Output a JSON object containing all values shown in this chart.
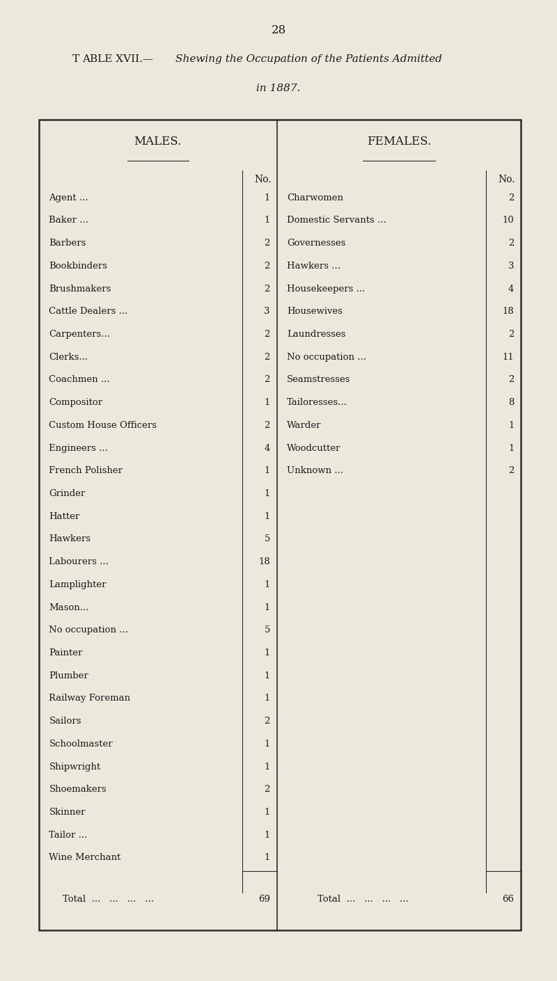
{
  "page_number": "28",
  "title_prefix": "Table XVII.—",
  "title_italic": "Shewing the Occupation of the Patients Admitted",
  "title_line2": "in 1887.",
  "males_header": "MALES.",
  "females_header": "FEMALES.",
  "no_label": "No.",
  "males_rows": [
    [
      "Agent ...",
      1
    ],
    [
      "Baker ...",
      1
    ],
    [
      "Barbers",
      2
    ],
    [
      "Bookbinders",
      2
    ],
    [
      "Brushmakers",
      2
    ],
    [
      "Cattle Dealers ...",
      3
    ],
    [
      "Carpenters...",
      2
    ],
    [
      "Clerks...",
      2
    ],
    [
      "Coachmen ...",
      2
    ],
    [
      "Compositor",
      1
    ],
    [
      "Custom House Officers",
      2
    ],
    [
      "Engineers ...",
      4
    ],
    [
      "French Polisher",
      1
    ],
    [
      "Grinder",
      1
    ],
    [
      "Hatter",
      1
    ],
    [
      "Hawkers",
      5
    ],
    [
      "Labourers ...",
      18
    ],
    [
      "Lamplighter",
      1
    ],
    [
      "Mason...",
      1
    ],
    [
      "No occupation ...",
      5
    ],
    [
      "Painter",
      1
    ],
    [
      "Plumber",
      1
    ],
    [
      "Railway Foreman",
      1
    ],
    [
      "Sailors",
      2
    ],
    [
      "Schoolmaster",
      1
    ],
    [
      "Shipwright",
      1
    ],
    [
      "Shoemakers",
      2
    ],
    [
      "Skinner",
      1
    ],
    [
      "Tailor ...",
      1
    ],
    [
      "Wine Merchant",
      1
    ]
  ],
  "males_total": 69,
  "females_rows": [
    [
      "Charwomen",
      2
    ],
    [
      "Domestic Servants ...",
      10
    ],
    [
      "Governesses",
      2
    ],
    [
      "Hawkers ...",
      3
    ],
    [
      "Housekeepers ...",
      4
    ],
    [
      "Housewives",
      18
    ],
    [
      "Laundresses",
      2
    ],
    [
      "No occupation ...",
      11
    ],
    [
      "Seamstresses",
      2
    ],
    [
      "Tailoresses...",
      8
    ],
    [
      "Warder",
      1
    ],
    [
      "Woodcutter",
      1
    ],
    [
      "Unknown ...",
      2
    ]
  ],
  "females_total": 66,
  "bg_color": "#EDE8DC",
  "text_color": "#1a1a1a",
  "table_bg": "#EDE8DC",
  "border_color": "#2a2a2a"
}
